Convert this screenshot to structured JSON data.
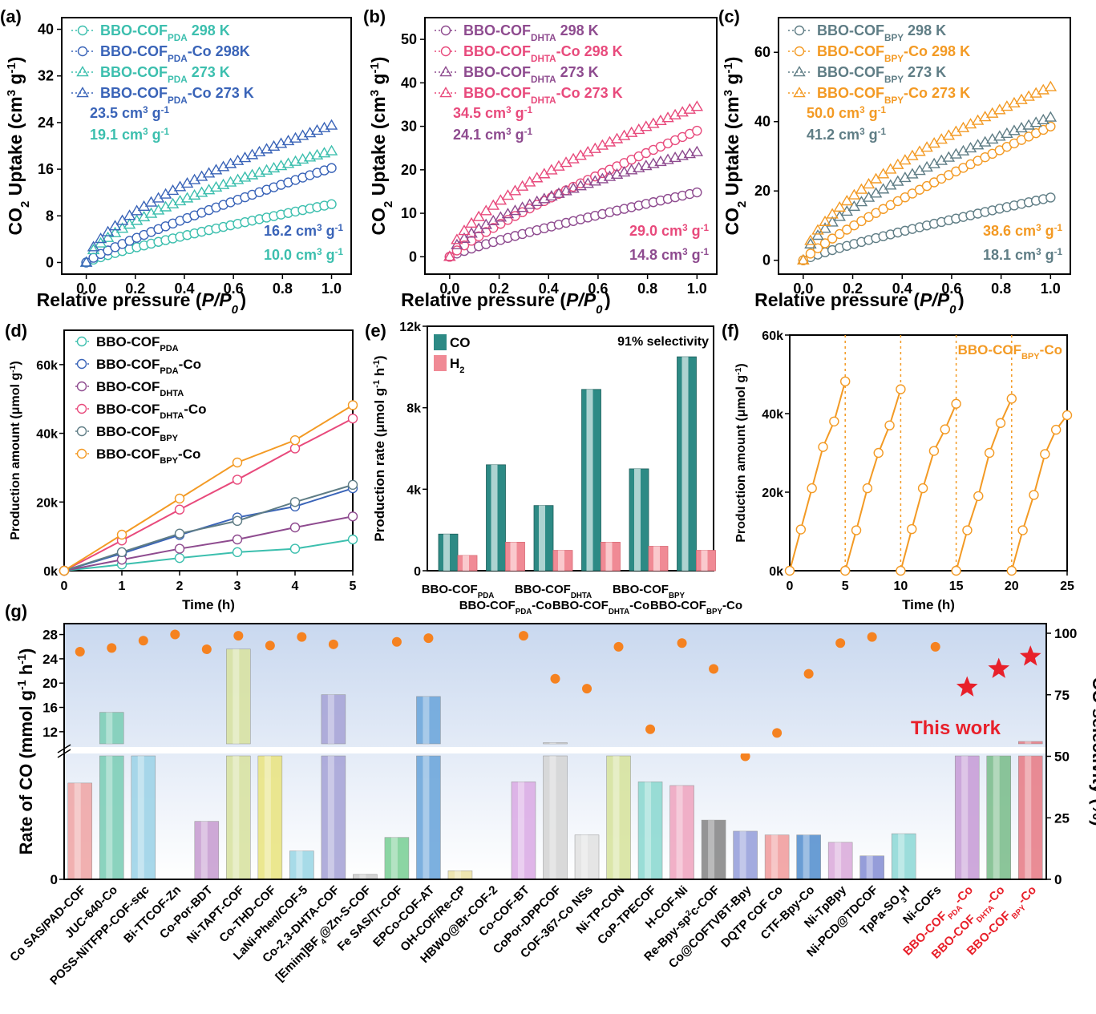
{
  "colors": {
    "teal": "#3cbfae",
    "blue": "#3a64b8",
    "purple": "#8e4b8f",
    "pink": "#e84a7c",
    "slate": "#5f7d85",
    "orange": "#f39a24",
    "co_bar": "#2d8a85",
    "h2_bar": "#f08a95",
    "red": "#e8202a",
    "dot": "#f58220"
  },
  "chart_data": [
    {
      "panel": "(a)",
      "type": "scatter",
      "xlabel": "Relative pressure (P/P0)",
      "ylabel": "CO2 Uptake (cm3 g-1)",
      "xlim": [
        -0.1,
        1.08
      ],
      "ylim": [
        -2,
        42
      ],
      "xticks": [
        "0.0",
        "0.2",
        "0.4",
        "0.6",
        "0.8",
        "1.0"
      ],
      "yticks": [
        "0",
        "8",
        "16",
        "24",
        "32",
        "40"
      ],
      "legend_position": "top-left",
      "series": [
        {
          "name": "BBO-COFPDA 298 K",
          "marker": "circle",
          "color": "#3cbfae",
          "end": 10.0
        },
        {
          "name": "BBO-COFPDA-Co 298K",
          "marker": "circle",
          "color": "#3a64b8",
          "end": 16.2
        },
        {
          "name": "BBO-COFPDA 273 K",
          "marker": "triangle",
          "color": "#3cbfae",
          "end": 19.1
        },
        {
          "name": "BBO-COFPDA-Co 273 K",
          "marker": "triangle",
          "color": "#3a64b8",
          "end": 23.5
        }
      ],
      "annotations": [
        "23.5 cm3 g-1",
        "19.1 cm3 g-1",
        "16.2 cm3 g-1",
        "10.0 cm3 g-1"
      ]
    },
    {
      "panel": "(b)",
      "type": "scatter",
      "xlabel": "Relative pressure (P/P0)",
      "ylabel": "CO2 Uptake (cm3 g-1)",
      "xlim": [
        -0.1,
        1.08
      ],
      "ylim": [
        -4,
        55
      ],
      "xticks": [
        "0.0",
        "0.2",
        "0.4",
        "0.6",
        "0.8",
        "1.0"
      ],
      "yticks": [
        "0",
        "10",
        "20",
        "30",
        "40",
        "50"
      ],
      "legend_position": "top-left",
      "series": [
        {
          "name": "BBO-COFDHTA 298 K",
          "marker": "circle",
          "color": "#8e4b8f",
          "end": 14.8
        },
        {
          "name": "BBO-COFDHTA-Co 298 K",
          "marker": "circle",
          "color": "#e84a7c",
          "end": 29.0
        },
        {
          "name": "BBO-COFDHTA 273 K",
          "marker": "triangle",
          "color": "#8e4b8f",
          "end": 24.1
        },
        {
          "name": "BBO-COFDHTA-Co 273 K",
          "marker": "triangle",
          "color": "#e84a7c",
          "end": 34.5
        }
      ],
      "annotations": [
        "34.5 cm3 g-1",
        "24.1 cm3 g-1",
        "29.0 cm3 g-1",
        "14.8 cm3 g-1"
      ]
    },
    {
      "panel": "(c)",
      "type": "scatter",
      "xlabel": "Relative pressure (P/P0)",
      "ylabel": "CO2 Uptake (cm3 g-1)",
      "xlim": [
        -0.1,
        1.08
      ],
      "ylim": [
        -4,
        70
      ],
      "xticks": [
        "0.0",
        "0.2",
        "0.4",
        "0.6",
        "0.8",
        "1.0"
      ],
      "yticks": [
        "0",
        "20",
        "40",
        "60"
      ],
      "legend_position": "top-left",
      "series": [
        {
          "name": "BBO-COFBPY 298 K",
          "marker": "circle",
          "color": "#5f7d85",
          "end": 18.1
        },
        {
          "name": "BBO-COFBPY-Co 298 K",
          "marker": "circle",
          "color": "#f39a24",
          "end": 38.6
        },
        {
          "name": "BBO-COFBPY 273 K",
          "marker": "triangle",
          "color": "#5f7d85",
          "end": 41.2
        },
        {
          "name": "BBO-COFBPY-Co 273 K",
          "marker": "triangle",
          "color": "#f39a24",
          "end": 50.0
        }
      ],
      "annotations": [
        "50.0 cm3 g-1",
        "41.2 cm3 g-1",
        "38.6 cm3 g-1",
        "18.1 cm3 g-1"
      ]
    },
    {
      "panel": "(d)",
      "type": "line",
      "xlabel": "Time (h)",
      "ylabel": "Production amount (μmol g-1)",
      "xlim": [
        0,
        5
      ],
      "ylim": [
        0,
        70000
      ],
      "x": [
        0,
        1,
        2,
        3,
        4,
        5
      ],
      "xticks": [
        "0",
        "1",
        "2",
        "3",
        "4",
        "5"
      ],
      "yticks": [
        "0k",
        "20k",
        "40k",
        "60k"
      ],
      "legend_position": "top-left",
      "series": [
        {
          "name": "BBO-COFPDA",
          "color": "#3cbfae",
          "values": [
            0,
            1800,
            3700,
            5400,
            6400,
            9100
          ]
        },
        {
          "name": "BBO-COFPDA-Co",
          "color": "#3a64b8",
          "values": [
            0,
            5000,
            10400,
            15500,
            18700,
            24000
          ]
        },
        {
          "name": "BBO-COFDHTA",
          "color": "#8e4b8f",
          "values": [
            0,
            3200,
            6400,
            9100,
            12600,
            15800
          ]
        },
        {
          "name": "BBO-COFDHTA-Co",
          "color": "#e84a7c",
          "values": [
            0,
            8800,
            17800,
            26500,
            35600,
            44300
          ]
        },
        {
          "name": "BBO-COFBPY",
          "color": "#5f7d85",
          "values": [
            0,
            5400,
            10800,
            14500,
            20000,
            25000
          ]
        },
        {
          "name": "BBO-COFBPY-Co",
          "color": "#f39a24",
          "values": [
            0,
            10500,
            21000,
            31500,
            38000,
            48200
          ]
        }
      ]
    },
    {
      "panel": "(e)",
      "type": "bar",
      "xlabel": "",
      "ylabel": "Production rate (μmol g-1 h-1)",
      "ylim": [
        0,
        12000
      ],
      "yticks": [
        "0",
        "4k",
        "8k",
        "12k"
      ],
      "categories": [
        "BBO-COFPDA",
        "BBO-COFPDA-Co",
        "BBO-COFDHTA",
        "BBO-COFDHTA-Co",
        "BBO-COFBPY",
        "BBO-COFBPY-Co"
      ],
      "series": [
        {
          "name": "CO",
          "values": [
            1800,
            5200,
            3200,
            8900,
            5000,
            10500
          ]
        },
        {
          "name": "H2",
          "values": [
            750,
            1400,
            1000,
            1400,
            1200,
            1000
          ]
        }
      ],
      "annotation": "91% selectivity",
      "legend_position": "top-left"
    },
    {
      "panel": "(f)",
      "type": "line",
      "xlabel": "Time (h)",
      "ylabel": "Production amount (μmol g-1)",
      "xlim": [
        0,
        25
      ],
      "ylim": [
        0,
        60000
      ],
      "xticks": [
        "0",
        "5",
        "10",
        "15",
        "20",
        "25"
      ],
      "yticks": [
        "0k",
        "20k",
        "40k",
        "60k"
      ],
      "series_name": "BBO-COFBPY-Co",
      "cycles": [
        {
          "x": [
            0,
            1,
            2,
            3,
            4,
            5
          ],
          "values": [
            0,
            10500,
            21000,
            31500,
            38000,
            48200
          ]
        },
        {
          "x": [
            5,
            6,
            7,
            8,
            9,
            10
          ],
          "values": [
            0,
            10300,
            21000,
            30000,
            37000,
            46200
          ]
        },
        {
          "x": [
            10,
            11,
            12,
            13,
            14,
            15
          ],
          "values": [
            0,
            10600,
            21000,
            30500,
            36000,
            42500
          ]
        },
        {
          "x": [
            15,
            16,
            17,
            18,
            19,
            20
          ],
          "values": [
            0,
            10300,
            19000,
            30000,
            37600,
            43800
          ]
        },
        {
          "x": [
            20,
            21,
            22,
            23,
            24,
            25
          ],
          "values": [
            0,
            10300,
            19300,
            29700,
            35900,
            39600
          ]
        }
      ],
      "dividers": [
        5,
        10,
        15,
        20
      ]
    },
    {
      "panel": "(g)",
      "type": "bar",
      "ylabel": "Rate of CO (mmol g-1 h-1)",
      "y2label": "CO selectivity (%)",
      "yticks_lower": [
        "0"
      ],
      "yticks_upper": [
        "12",
        "16",
        "20",
        "24",
        "28"
      ],
      "y2ticks": [
        "0",
        "25",
        "50",
        "75",
        "100"
      ],
      "lower_range_note": "axis break between lower segment and 12",
      "annotation": "This work",
      "categories": [
        "Co SAS/PAD-COF",
        "JUC-640-Co",
        "POSS-NiTFPP-COF-sqc",
        "Bi-TTCOF-Zn",
        "Co-Por-BDT",
        "Ni-TAPT-COF",
        "Co-THD-COF",
        "LaNi-Phen/COF-5",
        "Co-2,3-DHTA-COF",
        "[Emim]BF4@Zn-S-COF",
        "Fe SAS/Tr-COF",
        "EPCo-COF-AT",
        "OH-COF/Re-CP",
        "HBWO@Br-COF-2",
        "Co-COF-BT",
        "CoPor-DPPCOF",
        "COF-367-Co NSs",
        "Ni-TP-CON",
        "CoP-TPECOF",
        "H-COF-Ni",
        "Re-Bpy-sp2c-COF",
        "Co@COFTVBT-Bpy",
        "DQTP COF Co",
        "CTF-Bpy-Co",
        "Ni-TpBpy",
        "Ni-PCD@TDCOF",
        "TpPa-SO3H",
        "Ni-COFs",
        "BBO-COFPDA-Co",
        "BBO-COFDHTA-Co",
        "BBO-COFBPY-Co"
      ],
      "rate_fraction_lower": [
        0.78,
        1,
        1,
        0,
        0.47,
        1,
        1,
        0.23,
        1,
        0.04,
        0.34,
        1,
        0.07,
        0,
        0.79,
        1,
        0.36,
        1,
        0.79,
        0.76,
        0.48,
        0.39,
        0.36,
        0.36,
        0.3,
        0.19,
        0.37,
        0,
        1,
        1,
        1
      ],
      "rate_upper": [
        null,
        15.2,
        null,
        null,
        null,
        25.6,
        null,
        null,
        18.1,
        null,
        null,
        17.8,
        null,
        null,
        null,
        10.2,
        null,
        null,
        null,
        null,
        null,
        null,
        null,
        null,
        null,
        null,
        null,
        null,
        null,
        null,
        10.4
      ],
      "bar_colors": [
        "#f0a8a8",
        "#7fcfb8",
        "#9fd4e8",
        "#ffffff",
        "#c9a0d2",
        "#d9e3a3",
        "#eae584",
        "#9ed8e6",
        "#a9a6d8",
        "#cfcfcf",
        "#7fd19a",
        "#6fa8dc",
        "#ede3a8",
        "#ffffff",
        "#dcaee6",
        "#d6d6d6",
        "#e3e3e3",
        "#d8e4a0",
        "#8fdad2",
        "#f0a8c2",
        "#8a8a8a",
        "#9aa3dc",
        "#f2a0a0",
        "#5a93d0",
        "#dcaedc",
        "#8a93d6",
        "#92dad8",
        "#ffffff",
        "#c9a0d8",
        "#7fbf8f",
        "#e8808a"
      ],
      "selectivity": [
        92.5,
        94,
        97,
        99.5,
        93.5,
        99,
        95,
        98.5,
        95.5,
        null,
        96.5,
        98,
        null,
        null,
        99,
        81.5,
        77.5,
        94.5,
        61,
        96,
        85.5,
        50,
        59.5,
        83.5,
        96,
        98.5,
        null,
        94.5,
        78,
        85.5,
        90.5
      ]
    }
  ],
  "labels": {
    "a": "(a)",
    "b": "(b)",
    "c": "(c)",
    "d": "(d)",
    "e": "(e)",
    "f": "(f)",
    "g": "(g)"
  }
}
